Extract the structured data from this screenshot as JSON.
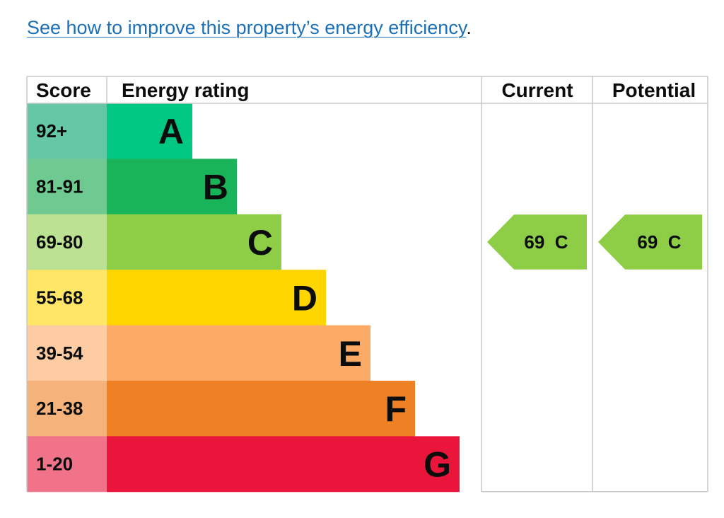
{
  "intro": {
    "link_text": "See how to improve this property’s energy efficiency",
    "suffix": "."
  },
  "chart_data": {
    "type": "table",
    "headers": {
      "score": "Score",
      "rating": "Energy rating",
      "current": "Current",
      "potential": "Potential"
    },
    "bands": [
      {
        "score": "92+",
        "letter": "A",
        "band_color": "#00c781",
        "score_bg": "#66c7a7",
        "min": 92
      },
      {
        "score": "81-91",
        "letter": "B",
        "band_color": "#19b459",
        "score_bg": "#6fca91",
        "min": 81
      },
      {
        "score": "69-80",
        "letter": "C",
        "band_color": "#8dce46",
        "score_bg": "#bce192",
        "min": 69
      },
      {
        "score": "55-68",
        "letter": "D",
        "band_color": "#ffd500",
        "score_bg": "#ffe666",
        "min": 55
      },
      {
        "score": "39-54",
        "letter": "E",
        "band_color": "#fcaa65",
        "score_bg": "#fdcca3",
        "min": 39
      },
      {
        "score": "21-38",
        "letter": "F",
        "band_color": "#ef8023",
        "score_bg": "#f5b37b",
        "min": 21
      },
      {
        "score": "1-20",
        "letter": "G",
        "band_color": "#e9153b",
        "score_bg": "#f07389",
        "min": 1
      }
    ],
    "current": {
      "value": 69,
      "letter": "C",
      "label": "69  C"
    },
    "potential": {
      "value": 69,
      "letter": "C",
      "label": "69  C"
    }
  }
}
